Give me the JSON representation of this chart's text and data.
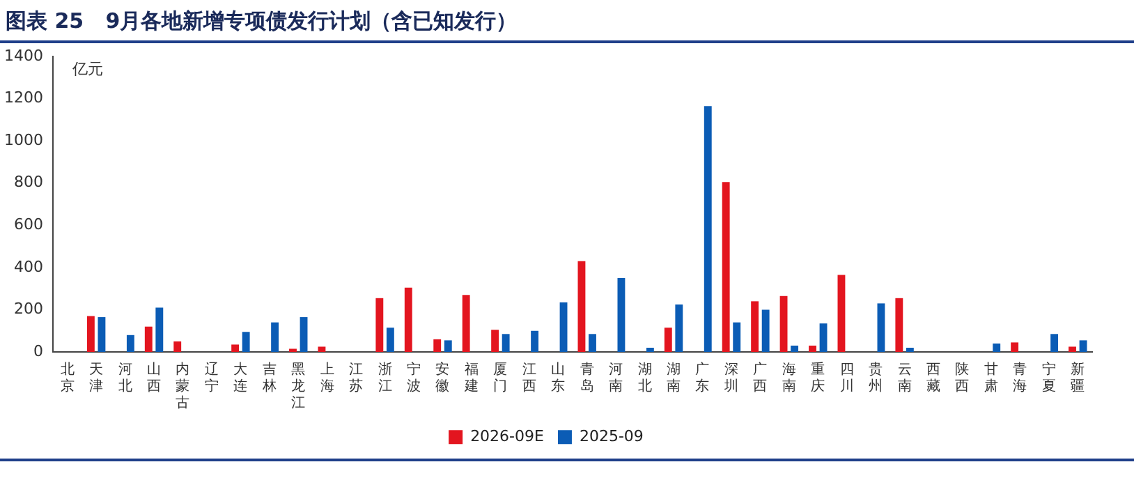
{
  "chart_data": {
    "type": "bar",
    "title": "图表 25   9月各地新增专项债发行计划（含已知发行）",
    "ylabel": "亿元",
    "categories": [
      "北京",
      "天津",
      "河北",
      "山西",
      "内蒙古",
      "辽宁",
      "大连",
      "吉林",
      "黑龙江",
      "上海",
      "江苏",
      "浙江",
      "宁波",
      "安徽",
      "福建",
      "厦门",
      "江西",
      "山东",
      "青岛",
      "河南",
      "湖北",
      "湖南",
      "广东",
      "深圳",
      "广西",
      "海南",
      "重庆",
      "四川",
      "贵州",
      "云南",
      "西藏",
      "陕西",
      "甘肃",
      "青海",
      "宁夏",
      "新疆"
    ],
    "series": [
      {
        "name": "2026-09E",
        "color": "#e3151f",
        "values": [
          null,
          170,
          null,
          120,
          50,
          null,
          35,
          null,
          15,
          25,
          null,
          255,
          305,
          60,
          270,
          105,
          null,
          null,
          430,
          null,
          null,
          115,
          null,
          805,
          240,
          265,
          30,
          365,
          null,
          255,
          null,
          null,
          null,
          45,
          null,
          25
        ]
      },
      {
        "name": "2025-09",
        "color": "#0b5cb5",
        "values": [
          null,
          165,
          80,
          210,
          null,
          null,
          95,
          140,
          165,
          null,
          null,
          115,
          null,
          55,
          null,
          85,
          100,
          235,
          85,
          350,
          20,
          225,
          1165,
          140,
          200,
          30,
          135,
          null,
          230,
          20,
          null,
          null,
          40,
          null,
          85,
          55
        ]
      }
    ],
    "ylim": [
      0,
      1400
    ],
    "yticks": [
      0,
      200,
      400,
      600,
      800,
      1000,
      1200,
      1400
    ],
    "grid": false,
    "legend": "bottom"
  }
}
